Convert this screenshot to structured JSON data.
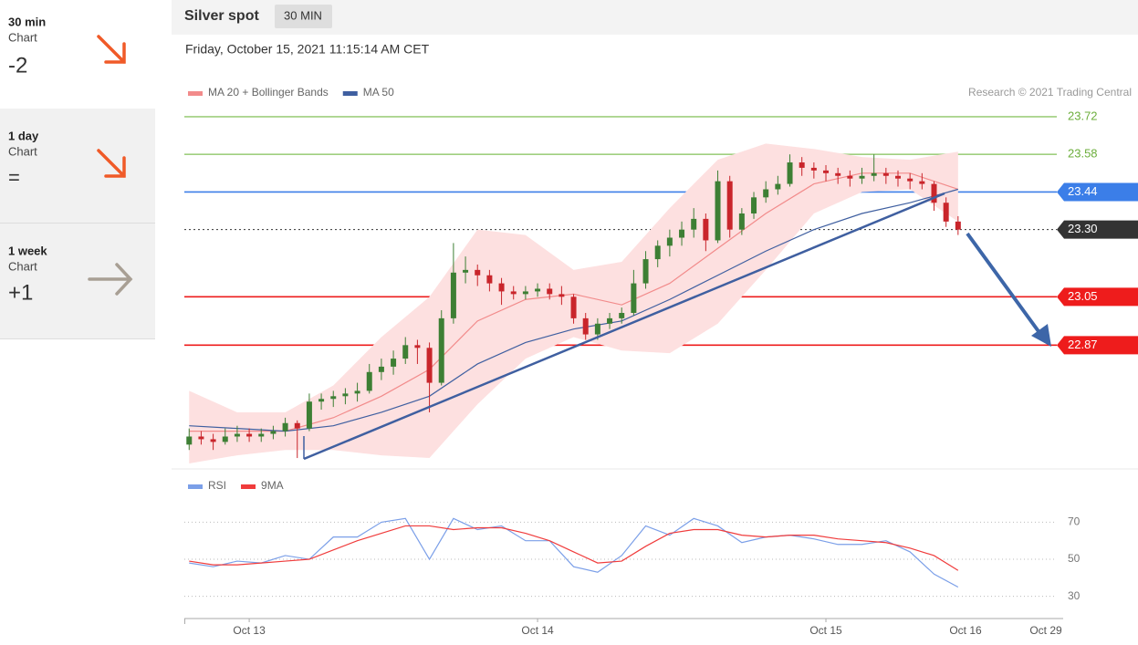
{
  "sidebar": [
    {
      "period": "30 min",
      "label": "Chart",
      "score": "-2"
    },
    {
      "period": "1 day",
      "label": "Chart",
      "score": "="
    },
    {
      "period": "1 week",
      "label": "Chart",
      "score": "+1"
    }
  ],
  "header": {
    "title": "Silver spot",
    "interval": "30 MIN",
    "timestamp": "Friday, October 15, 2021 11:15:14 AM CET",
    "copyright": "Research © 2021 Trading Central"
  },
  "chart_data": [
    {
      "type": "candlestick",
      "up_color": "#3d7f34",
      "down_color": "#c9252b",
      "xlim": [
        -5.4,
        60
      ],
      "ylim": [
        22.44,
        23.764
      ],
      "candles": [
        [
          -5,
          22.5,
          22.56,
          22.48,
          22.53
        ],
        [
          -4,
          22.53,
          22.55,
          22.5,
          22.52
        ],
        [
          -3,
          22.52,
          22.54,
          22.48,
          22.51
        ],
        [
          -2,
          22.51,
          22.56,
          22.5,
          22.53
        ],
        [
          -1,
          22.53,
          22.57,
          22.51,
          22.54
        ],
        [
          0,
          22.54,
          22.56,
          22.51,
          22.53
        ],
        [
          1,
          22.53,
          22.56,
          22.51,
          22.54
        ],
        [
          2,
          22.54,
          22.57,
          22.52,
          22.55
        ],
        [
          3,
          22.55,
          22.6,
          22.53,
          22.58
        ],
        [
          4,
          22.58,
          22.59,
          22.45,
          22.56
        ],
        [
          5,
          22.56,
          22.69,
          22.55,
          22.66
        ],
        [
          6,
          22.66,
          22.69,
          22.63,
          22.67
        ],
        [
          7,
          22.67,
          22.7,
          22.64,
          22.68
        ],
        [
          8,
          22.68,
          22.71,
          22.65,
          22.69
        ],
        [
          9,
          22.69,
          22.73,
          22.66,
          22.7
        ],
        [
          10,
          22.7,
          22.8,
          22.69,
          22.77
        ],
        [
          11,
          22.77,
          22.82,
          22.74,
          22.79
        ],
        [
          12,
          22.79,
          22.85,
          22.76,
          22.82
        ],
        [
          13,
          22.82,
          22.9,
          22.8,
          22.87
        ],
        [
          14,
          22.87,
          22.89,
          22.8,
          22.86
        ],
        [
          15,
          22.86,
          22.88,
          22.62,
          22.73
        ],
        [
          16,
          22.73,
          23.0,
          22.72,
          22.97
        ],
        [
          17,
          22.97,
          23.25,
          22.95,
          23.14
        ],
        [
          18,
          23.14,
          23.2,
          23.1,
          23.15
        ],
        [
          19,
          23.15,
          23.17,
          23.09,
          23.13
        ],
        [
          20,
          23.13,
          23.15,
          23.07,
          23.1
        ],
        [
          21,
          23.1,
          23.12,
          23.02,
          23.07
        ],
        [
          22,
          23.07,
          23.09,
          23.04,
          23.06
        ],
        [
          23,
          23.06,
          23.09,
          23.04,
          23.07
        ],
        [
          24,
          23.07,
          23.1,
          23.05,
          23.08
        ],
        [
          25,
          23.08,
          23.1,
          23.04,
          23.06
        ],
        [
          26,
          23.06,
          23.09,
          23.02,
          23.05
        ],
        [
          27,
          23.05,
          23.06,
          22.95,
          22.97
        ],
        [
          28,
          22.97,
          22.99,
          22.89,
          22.91
        ],
        [
          29,
          22.91,
          22.97,
          22.89,
          22.95
        ],
        [
          30,
          22.95,
          22.99,
          22.93,
          22.97
        ],
        [
          31,
          22.97,
          23.01,
          22.95,
          22.99
        ],
        [
          32,
          22.99,
          23.15,
          22.98,
          23.1
        ],
        [
          33,
          23.1,
          23.22,
          23.08,
          23.19
        ],
        [
          34,
          23.19,
          23.26,
          23.16,
          23.24
        ],
        [
          35,
          23.24,
          23.3,
          23.2,
          23.27
        ],
        [
          36,
          23.27,
          23.33,
          23.24,
          23.3
        ],
        [
          37,
          23.3,
          23.38,
          23.27,
          23.34
        ],
        [
          38,
          23.34,
          23.36,
          23.22,
          23.26
        ],
        [
          39,
          23.26,
          23.52,
          23.25,
          23.48
        ],
        [
          40,
          23.48,
          23.5,
          23.27,
          23.3
        ],
        [
          41,
          23.3,
          23.38,
          23.28,
          23.36
        ],
        [
          42,
          23.36,
          23.44,
          23.34,
          23.42
        ],
        [
          43,
          23.42,
          23.48,
          23.4,
          23.45
        ],
        [
          44,
          23.45,
          23.5,
          23.43,
          23.47
        ],
        [
          45,
          23.47,
          23.58,
          23.46,
          23.55
        ],
        [
          46,
          23.55,
          23.57,
          23.5,
          23.53
        ],
        [
          47,
          23.53,
          23.55,
          23.49,
          23.52
        ],
        [
          48,
          23.52,
          23.54,
          23.48,
          23.51
        ],
        [
          49,
          23.51,
          23.53,
          23.47,
          23.5
        ],
        [
          50,
          23.5,
          23.52,
          23.46,
          23.49
        ],
        [
          51,
          23.49,
          23.53,
          23.47,
          23.5
        ],
        [
          52,
          23.5,
          23.58,
          23.48,
          23.51
        ],
        [
          53,
          23.51,
          23.53,
          23.47,
          23.5
        ],
        [
          54,
          23.5,
          23.52,
          23.46,
          23.49
        ],
        [
          55,
          23.49,
          23.51,
          23.45,
          23.48
        ],
        [
          56,
          23.48,
          23.51,
          23.45,
          23.47
        ],
        [
          57,
          23.47,
          23.48,
          23.37,
          23.4
        ],
        [
          58,
          23.4,
          23.42,
          23.31,
          23.33
        ],
        [
          59,
          23.33,
          23.35,
          23.28,
          23.3
        ]
      ],
      "series": [
        {
          "name": "MA 20 + Bollinger Bands",
          "color": "#f28b8b",
          "band_color": "#fde0e0",
          "x": [
            -5,
            -1,
            3,
            7,
            11,
            15,
            19,
            23,
            27,
            31,
            35,
            39,
            43,
            47,
            51,
            55,
            59
          ],
          "values": [
            22.55,
            22.55,
            22.55,
            22.6,
            22.68,
            22.78,
            22.96,
            23.04,
            23.06,
            23.02,
            23.1,
            23.23,
            23.36,
            23.47,
            23.51,
            23.51,
            23.45
          ],
          "upper": [
            22.7,
            22.62,
            22.62,
            22.72,
            22.9,
            23.05,
            23.3,
            23.28,
            23.15,
            23.18,
            23.38,
            23.56,
            23.62,
            23.6,
            23.57,
            23.56,
            23.59
          ],
          "lower": [
            22.43,
            22.46,
            22.48,
            22.48,
            22.46,
            22.45,
            22.65,
            22.82,
            22.9,
            22.85,
            22.84,
            22.95,
            23.15,
            23.36,
            23.44,
            23.45,
            23.33
          ]
        },
        {
          "name": "MA 50",
          "color": "#3f5fa0",
          "x": [
            -5,
            -1,
            3,
            7,
            11,
            15,
            19,
            23,
            27,
            31,
            35,
            39,
            43,
            47,
            51,
            55,
            59
          ],
          "values": [
            22.57,
            22.56,
            22.55,
            22.57,
            22.62,
            22.68,
            22.8,
            22.88,
            22.93,
            22.96,
            23.04,
            23.13,
            23.22,
            23.3,
            23.36,
            23.4,
            23.45
          ]
        }
      ],
      "levels": [
        {
          "value": 23.72,
          "color": "#9fcf7f",
          "tag": false
        },
        {
          "value": 23.58,
          "color": "#9fcf7f",
          "tag": false
        },
        {
          "value": 23.44,
          "color": "#3b7ee8",
          "tag": true
        },
        {
          "value": 23.3,
          "label": "23.30",
          "color": "#333333",
          "tag": true,
          "dashed": true
        },
        {
          "value": 23.05,
          "color": "#ee1c1c",
          "tag": true
        },
        {
          "value": 22.87,
          "color": "#ee1c1c",
          "tag": true
        }
      ]
    },
    {
      "type": "line",
      "xlim": [
        -5.4,
        60
      ],
      "ylim": [
        20,
        82
      ],
      "yticks": [
        70,
        50,
        30
      ],
      "x": [
        -5,
        -3,
        -1,
        1,
        3,
        5,
        7,
        9,
        11,
        13,
        15,
        17,
        19,
        21,
        23,
        25,
        27,
        29,
        31,
        33,
        35,
        37,
        39,
        41,
        43,
        45,
        47,
        49,
        51,
        53,
        55,
        57,
        59
      ],
      "series": [
        {
          "name": "RSI",
          "color": "#7b9fe8",
          "values": [
            48,
            46,
            49,
            48,
            52,
            50,
            62,
            62,
            70,
            72,
            50,
            72,
            66,
            68,
            60,
            60,
            46,
            43,
            52,
            68,
            63,
            72,
            68,
            59,
            62,
            63,
            61,
            58,
            58,
            60,
            54,
            42,
            35
          ]
        },
        {
          "name": "9MA",
          "color": "#f03c3c",
          "values": [
            49,
            47,
            47,
            48,
            49,
            50,
            55,
            60,
            64,
            68,
            68,
            66,
            67,
            67,
            64,
            60,
            54,
            48,
            49,
            57,
            64,
            66,
            66,
            63,
            62,
            63,
            63,
            61,
            60,
            59,
            56,
            52,
            44
          ]
        }
      ],
      "xticks": [
        {
          "value": 0,
          "label": "Oct 13"
        },
        {
          "value": 24,
          "label": "Oct 14"
        },
        {
          "value": 48,
          "label": "Oct 15"
        }
      ],
      "future_xticks": [
        "Oct 16",
        "Oct 29"
      ]
    }
  ]
}
